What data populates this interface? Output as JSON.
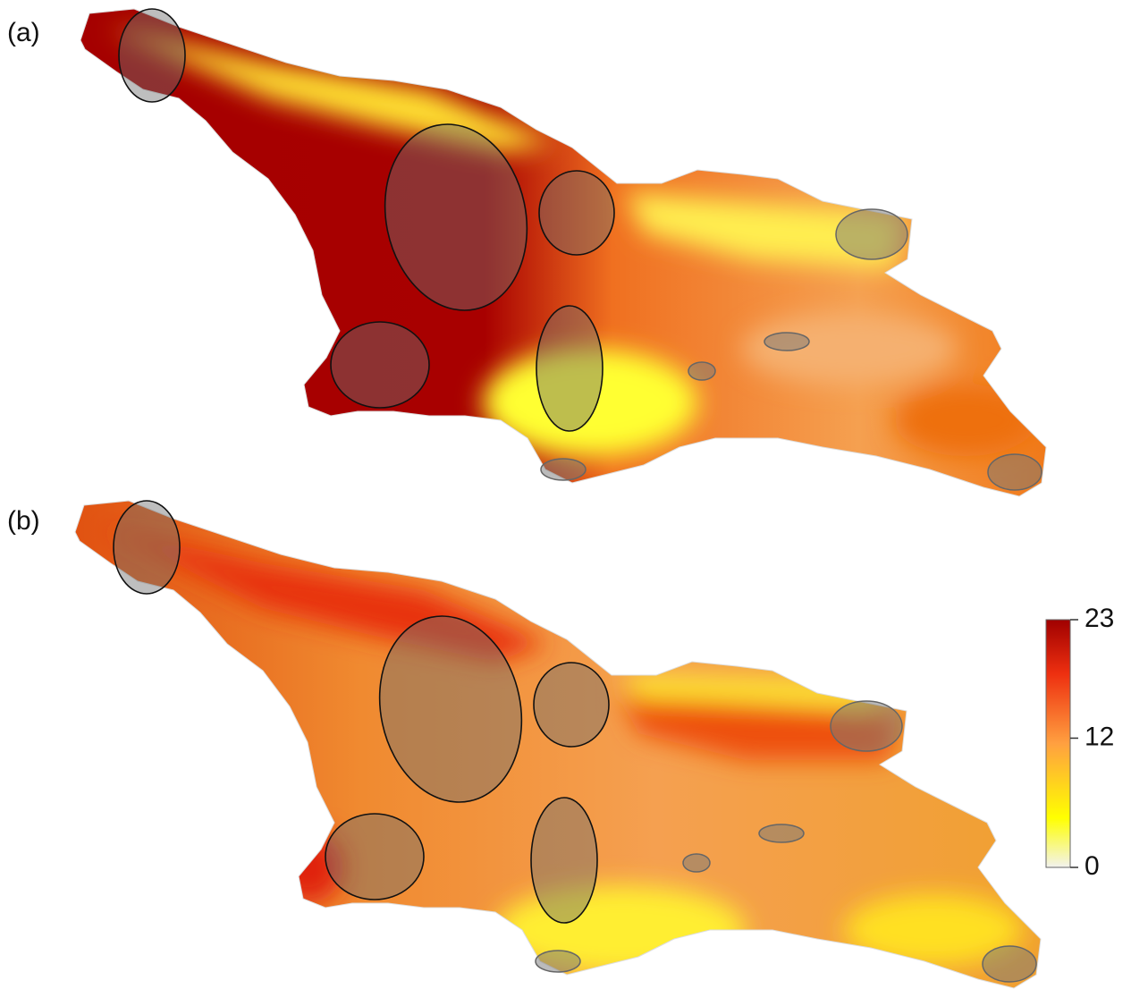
{
  "panels": [
    {
      "label": "(a)"
    },
    {
      "label": "(b)"
    }
  ],
  "colorbar": {
    "range": [
      0,
      23
    ],
    "ticks": [
      0,
      12,
      23
    ]
  }
}
